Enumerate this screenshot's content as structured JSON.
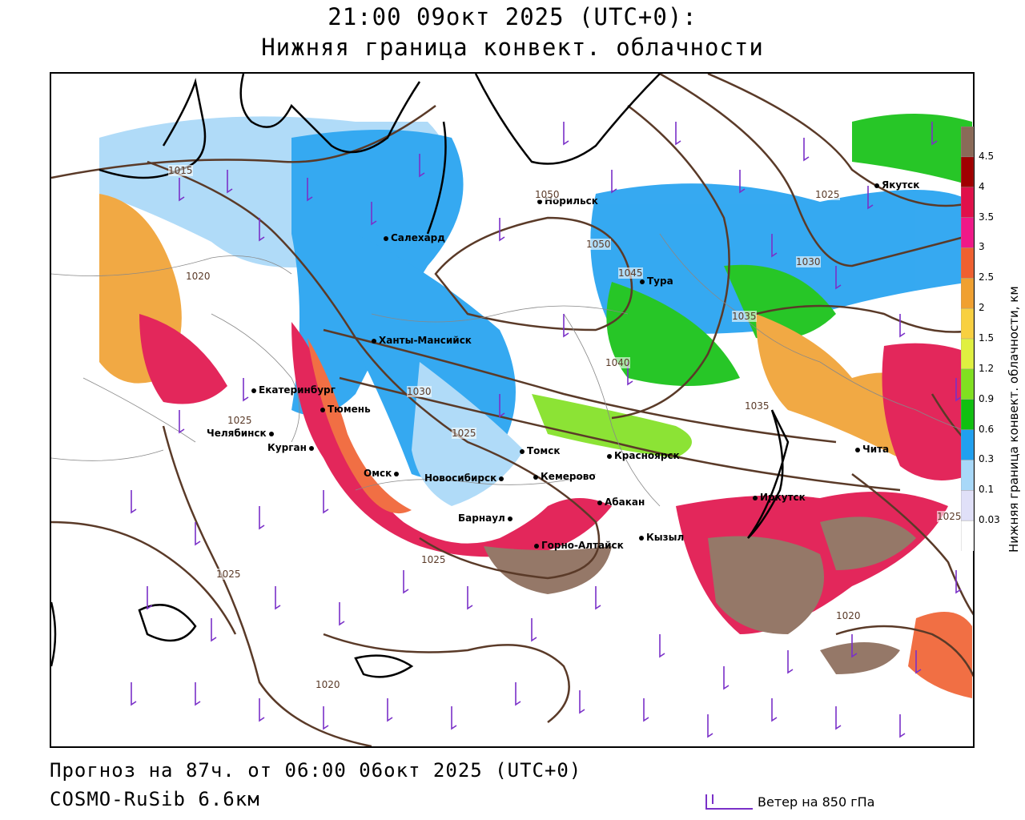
{
  "header": {
    "line1": "21:00 09окт 2025 (UTC+0):",
    "line2": "Нижняя граница конвект. облачности"
  },
  "footer": {
    "forecast": "Прогноз на 87ч. от 06:00 06окт 2025 (UTC+0)",
    "model": "COSMO-RuSib 6.6км",
    "wind_legend": "Ветер на 850 гПа"
  },
  "colorbar": {
    "title": "Нижняя граница конвект. облачности, км",
    "levels": [
      "4.5",
      "4",
      "3.5",
      "3",
      "2.5",
      "2",
      "1.5",
      "1.2",
      "0.9",
      "0.6",
      "0.3",
      "0.1",
      "0.03"
    ],
    "colors": [
      "#ffffff",
      "#e0e0f8",
      "#a8d8f8",
      "#20a0f0",
      "#10c010",
      "#80e020",
      "#e0f040",
      "#f8d040",
      "#f0a030",
      "#f06030",
      "#f01888",
      "#e0104a",
      "#a00000",
      "#8a6a58"
    ]
  },
  "cities": [
    {
      "name": "Якутск"
    },
    {
      "name": "Норильск"
    },
    {
      "name": "Салехард"
    },
    {
      "name": "Тура"
    },
    {
      "name": "Ханты-Мансийск"
    },
    {
      "name": "Екатеринбург"
    },
    {
      "name": "Тюмень"
    },
    {
      "name": "Челябинск"
    },
    {
      "name": "Курган"
    },
    {
      "name": "Омск"
    },
    {
      "name": "Новосибирск"
    },
    {
      "name": "Томск"
    },
    {
      "name": "Кемерово"
    },
    {
      "name": "Красноярск"
    },
    {
      "name": "Барнаул"
    },
    {
      "name": "Абакан"
    },
    {
      "name": "Горно-Алтайск"
    },
    {
      "name": "Кызыл"
    },
    {
      "name": "Иркутск"
    },
    {
      "name": "Чита"
    }
  ],
  "isobar_labels": [
    "1015",
    "1020",
    "1025",
    "1030",
    "1035",
    "1040",
    "1045",
    "1050"
  ]
}
